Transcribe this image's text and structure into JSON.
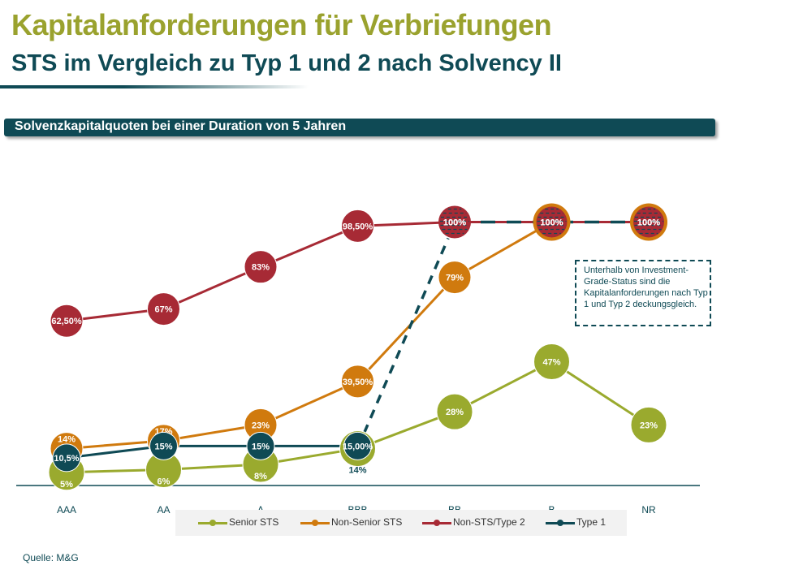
{
  "title": "Kapitalanforderungen für Verbriefungen",
  "subtitle": "STS im Vergleich zu Typ 1 und 2 nach Solvency II",
  "banner": "Solvenzkapitalquoten bei einer Duration von 5 Jahren",
  "note": "Unterhalb von Investment-Grade-Status sind die Kapitalanforderungen nach Typ 1 und Typ 2 deckungsgleich.",
  "source": "Quelle: M&G",
  "colors": {
    "senior_sts": "#9aaa2e",
    "non_senior_sts": "#d07a0e",
    "non_sts_type2": "#a72a35",
    "type1": "#0f4a55",
    "header": "#0f4a55"
  },
  "chart_data": {
    "type": "line",
    "categories": [
      "AAA",
      "AA",
      "A",
      "BBB",
      "BB",
      "B",
      "NR"
    ],
    "ylim": [
      0,
      100
    ],
    "legend_position": "bottom",
    "series": [
      {
        "name": "Senior STS",
        "values": [
          5,
          6,
          8,
          14,
          28,
          47,
          23
        ],
        "labels": [
          "5%",
          "6%",
          "8%",
          "14%",
          "28%",
          "47%",
          "23%"
        ]
      },
      {
        "name": "Non-Senior STS",
        "values": [
          14,
          17,
          23,
          39.5,
          79,
          100,
          100
        ],
        "labels": [
          "14%",
          "17%",
          "23%",
          "39,50%",
          "79%",
          "100%",
          "100%"
        ]
      },
      {
        "name": "Non-STS/Type 2",
        "values": [
          62.5,
          67,
          83,
          98.5,
          100,
          100,
          100
        ],
        "labels": [
          "62,50%",
          "67%",
          "83%",
          "98,50%",
          "100%",
          "100%",
          "100%"
        ]
      },
      {
        "name": "Type 1",
        "values": [
          10.5,
          15,
          15,
          15,
          100,
          100,
          100
        ],
        "labels": [
          "10,5%",
          "15%",
          "15%",
          "15,00%",
          "100%",
          "100%",
          "100%"
        ]
      }
    ]
  }
}
